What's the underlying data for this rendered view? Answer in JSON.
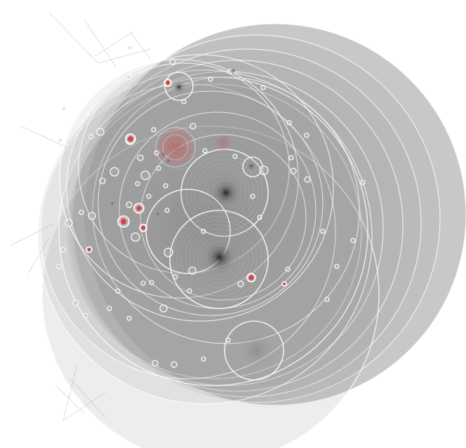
{
  "colors": {
    "background": "#ffffff",
    "bubble_fill": "#9a9a9a",
    "bubble_stroke": "#ffffff",
    "highlight": "#d3383c",
    "core": "#2e2e2e",
    "link": "#c8c8c8"
  }
}
